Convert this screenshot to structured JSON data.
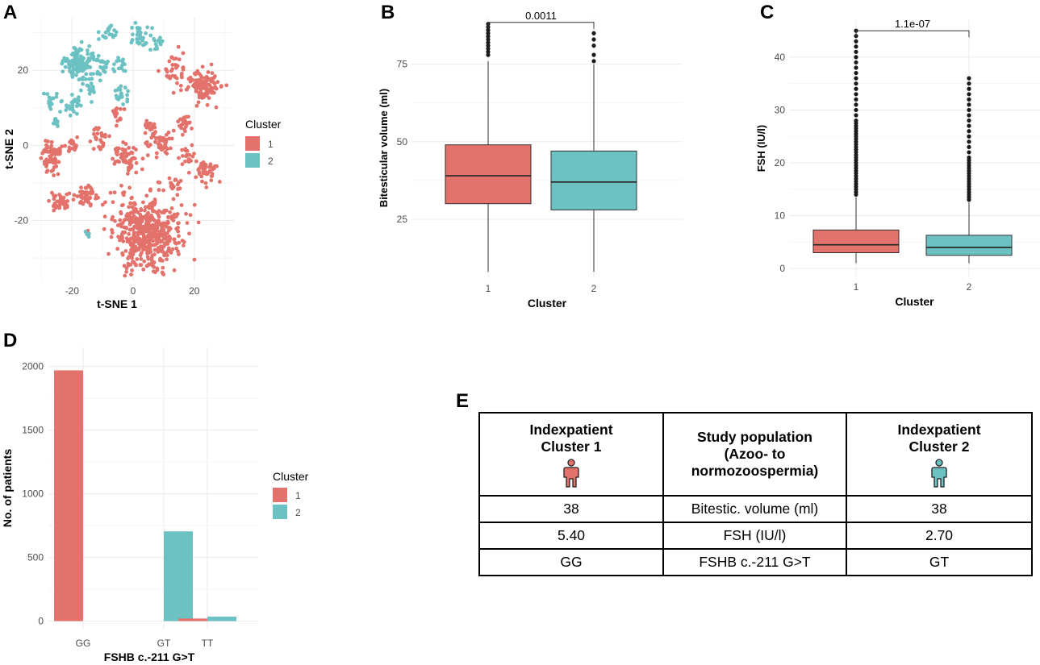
{
  "colors": {
    "cluster1": "#E2726B",
    "cluster2": "#6CC1C3",
    "grid": "#EBEBEB",
    "axis": "#4D4D4D"
  },
  "panels": {
    "A": "A",
    "B": "B",
    "C": "C",
    "D": "D",
    "E": "E"
  },
  "chart_data": [
    {
      "panel": "A",
      "type": "scatter",
      "xlabel": "t-SNE 1",
      "ylabel": "t-SNE 2",
      "xlim": [
        -33,
        33
      ],
      "ylim": [
        -36,
        34
      ],
      "xticks": [
        "-20",
        "0",
        "20"
      ],
      "xtick_values": [
        -20,
        0,
        20
      ],
      "yticks": [
        "-20",
        "0",
        "20"
      ],
      "ytick_values": [
        -20,
        0,
        20
      ],
      "legend": {
        "title": "Cluster",
        "position": "right",
        "entries": [
          "1",
          "2"
        ]
      },
      "series": [
        {
          "name": "1",
          "color": "#E2726B",
          "clusters": [
            {
              "x": 4,
              "y": -23,
              "sx": 7,
              "sy": 7,
              "n": 520
            },
            {
              "x": -27,
              "y": -3,
              "sx": 2,
              "sy": 2.5,
              "n": 70
            },
            {
              "x": -3,
              "y": -3,
              "sx": 2.5,
              "sy": 2,
              "n": 60
            },
            {
              "x": 9,
              "y": 1,
              "sx": 2.5,
              "sy": 2,
              "n": 55
            },
            {
              "x": -15,
              "y": -13,
              "sx": 2,
              "sy": 2,
              "n": 45
            },
            {
              "x": -23,
              "y": -15,
              "sx": 2,
              "sy": 2,
              "n": 45
            },
            {
              "x": 24,
              "y": -7,
              "sx": 2,
              "sy": 2,
              "n": 45
            },
            {
              "x": 23,
              "y": 16,
              "sx": 3,
              "sy": 2.5,
              "n": 120
            },
            {
              "x": 17,
              "y": 6,
              "sx": 1.5,
              "sy": 1.5,
              "n": 25
            },
            {
              "x": 13,
              "y": 20,
              "sx": 2,
              "sy": 3,
              "n": 35
            },
            {
              "x": -11,
              "y": 2,
              "sx": 2,
              "sy": 2,
              "n": 25
            },
            {
              "x": -20,
              "y": 0,
              "sx": 1.5,
              "sy": 1.5,
              "n": 20
            },
            {
              "x": 18,
              "y": -3,
              "sx": 1.5,
              "sy": 1.5,
              "n": 18
            },
            {
              "x": 5,
              "y": 5,
              "sx": 1.5,
              "sy": 1.5,
              "n": 18
            },
            {
              "x": -5,
              "y": 8,
              "sx": 1.5,
              "sy": 1.5,
              "n": 15
            },
            {
              "x": 13,
              "y": -10,
              "sx": 1.5,
              "sy": 1.5,
              "n": 15
            }
          ]
        },
        {
          "name": "2",
          "color": "#6CC1C3",
          "clusters": [
            {
              "x": -18,
              "y": 22,
              "sx": 3,
              "sy": 2.5,
              "n": 130
            },
            {
              "x": 2,
              "y": 29,
              "sx": 2,
              "sy": 2,
              "n": 40
            },
            {
              "x": -8,
              "y": 30,
              "sx": 1.5,
              "sy": 1.5,
              "n": 20
            },
            {
              "x": -20,
              "y": 11,
              "sx": 2,
              "sy": 2,
              "n": 30
            },
            {
              "x": -4,
              "y": 13,
              "sx": 1.5,
              "sy": 2,
              "n": 25
            },
            {
              "x": -14,
              "y": 15,
              "sx": 1.5,
              "sy": 1.5,
              "n": 20
            },
            {
              "x": -10,
              "y": 21,
              "sx": 1.5,
              "sy": 1.5,
              "n": 20
            },
            {
              "x": -27,
              "y": 12,
              "sx": 1.5,
              "sy": 1.5,
              "n": 15
            },
            {
              "x": -5,
              "y": 21,
              "sx": 1.5,
              "sy": 1.5,
              "n": 15
            },
            {
              "x": 8,
              "y": 27,
              "sx": 1.5,
              "sy": 1.5,
              "n": 15
            },
            {
              "x": -15,
              "y": -24,
              "sx": 0.8,
              "sy": 0.8,
              "n": 5
            },
            {
              "x": -25,
              "y": 6,
              "sx": 1,
              "sy": 1,
              "n": 8
            }
          ]
        }
      ]
    },
    {
      "panel": "B",
      "type": "box",
      "xlabel": "Cluster",
      "ylabel": "Bitesticular volume (ml)",
      "ylim": [
        6,
        90
      ],
      "yticks": [
        "25",
        "50",
        "75"
      ],
      "ytick_values": [
        25,
        50,
        75
      ],
      "categories": [
        "1",
        "2"
      ],
      "boxes": [
        {
          "category": "1",
          "min": 8,
          "q1": 30,
          "median": 39,
          "q3": 49,
          "max": 76,
          "outliers": [
            78,
            79,
            80,
            81,
            82,
            83,
            84,
            85,
            86,
            87,
            88
          ]
        },
        {
          "category": "2",
          "min": 8,
          "q1": 28,
          "median": 37,
          "q3": 47,
          "max": 75,
          "outliers": [
            76,
            78,
            81,
            83,
            85
          ]
        }
      ],
      "annotation": {
        "text": "0.0011",
        "bracket_y": 88.5
      }
    },
    {
      "panel": "C",
      "type": "box",
      "xlabel": "Cluster",
      "ylabel": "FSH (IU/l)",
      "ylim": [
        -1.5,
        47
      ],
      "yticks": [
        "0",
        "10",
        "20",
        "30",
        "40"
      ],
      "ytick_values": [
        0,
        10,
        20,
        30,
        40
      ],
      "categories": [
        "1",
        "2"
      ],
      "boxes": [
        {
          "category": "1",
          "min": 1,
          "q1": 3,
          "median": 4.5,
          "q3": 7.3,
          "max": 13.5,
          "outliers": [
            14,
            14.5,
            15,
            15.5,
            16,
            16.5,
            17,
            17.5,
            18,
            18.5,
            19,
            19.5,
            20,
            20.5,
            21,
            21.5,
            22,
            22.5,
            23,
            23.5,
            24,
            24.5,
            25,
            25.5,
            26,
            26.5,
            27,
            27.5,
            28,
            29,
            30,
            31,
            32,
            33,
            34,
            35,
            36,
            37,
            38,
            39,
            40,
            41,
            42,
            43,
            44,
            45
          ]
        },
        {
          "category": "2",
          "min": 1,
          "q1": 2.5,
          "median": 4,
          "q3": 6.3,
          "max": 12.5,
          "outliers": [
            13,
            13.5,
            14,
            14.5,
            15,
            15.5,
            16,
            16.5,
            17,
            17.5,
            18,
            18.5,
            19,
            19.5,
            20,
            20.5,
            21,
            22,
            23,
            24,
            25,
            26,
            27,
            28,
            29,
            30,
            31,
            32,
            33,
            34,
            35,
            36
          ]
        }
      ],
      "annotation": {
        "text": "1.1e-07",
        "bracket_y": 45
      }
    },
    {
      "panel": "D",
      "type": "bar",
      "xlabel": "FSHB c.-211 G>T",
      "ylabel": "No. of patients",
      "ylim": [
        -60,
        2150
      ],
      "yticks": [
        "0",
        "500",
        "1000",
        "1500",
        "2000"
      ],
      "ytick_values": [
        0,
        500,
        1000,
        1500,
        2000
      ],
      "categories": [
        "GG",
        "GT",
        "TT"
      ],
      "series": [
        {
          "name": "1",
          "color": "#E2726B",
          "values": [
            1970,
            0,
            20
          ]
        },
        {
          "name": "2",
          "color": "#6CC1C3",
          "values": [
            0,
            705,
            35
          ]
        }
      ],
      "legend": {
        "title": "Cluster",
        "position": "right",
        "entries": [
          "1",
          "2"
        ]
      }
    }
  ],
  "table": {
    "headers": [
      {
        "line1": "Indexpatient",
        "line2": "Cluster 1",
        "icon": "person-red-icon"
      },
      {
        "line1": "Study population",
        "line2": "(Azoo- to",
        "line3": "normozoospermia)"
      },
      {
        "line1": "Indexpatient",
        "line2": "Cluster 2",
        "icon": "person-teal-icon"
      }
    ],
    "rows": [
      {
        "c1": "38",
        "label": "Bitestic. volume (ml)",
        "c2": "38"
      },
      {
        "c1": "5.40",
        "label": "FSH (IU/l)",
        "c2": "2.70"
      },
      {
        "c1": "GG",
        "label": "FSHB c.-211 G>T",
        "c2": "GT"
      }
    ]
  }
}
